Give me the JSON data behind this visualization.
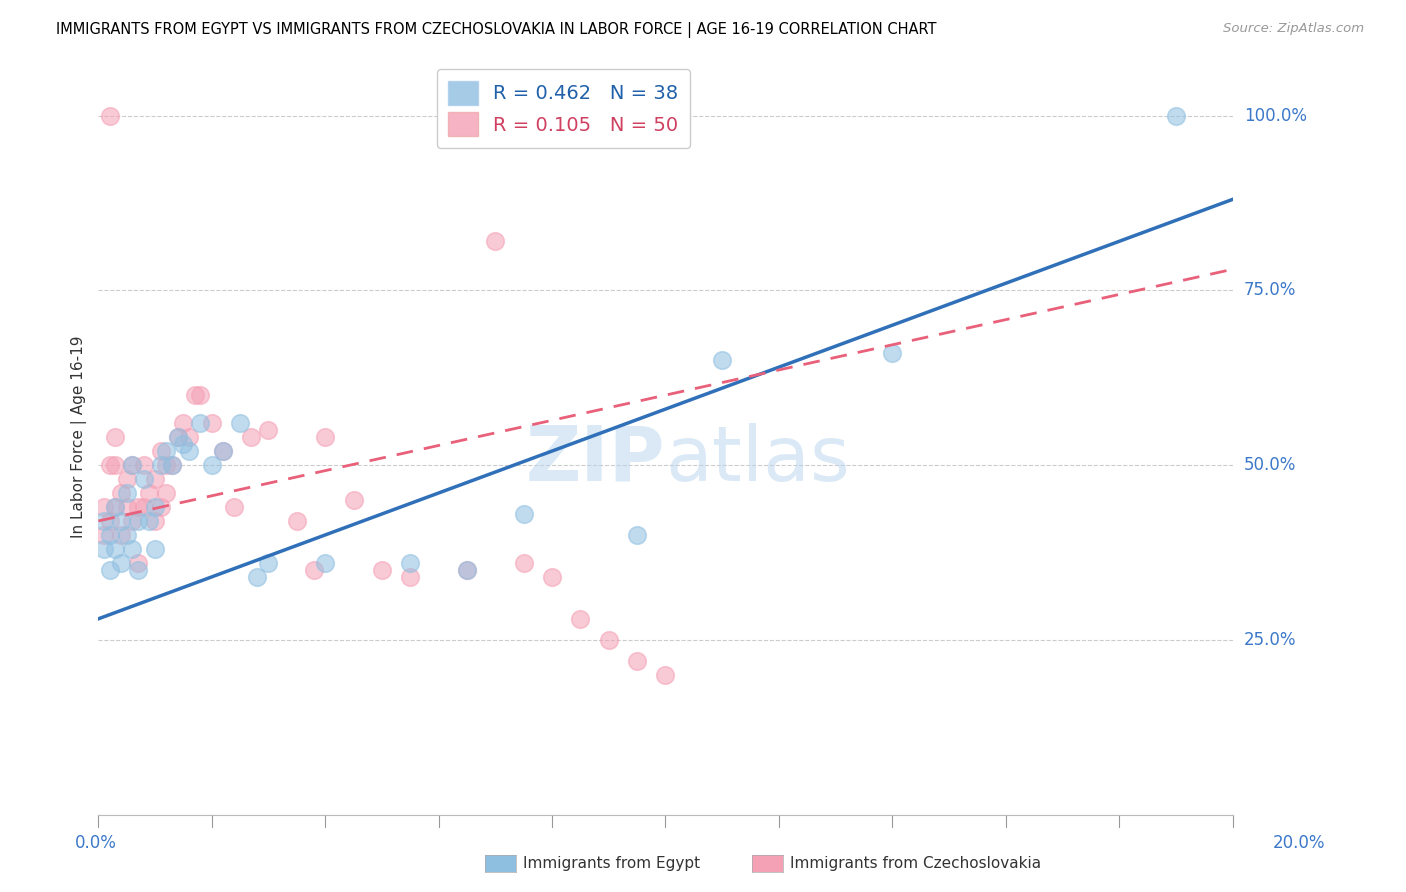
{
  "title": "IMMIGRANTS FROM EGYPT VS IMMIGRANTS FROM CZECHOSLOVAKIA IN LABOR FORCE | AGE 16-19 CORRELATION CHART",
  "source": "Source: ZipAtlas.com",
  "ylabel": "In Labor Force | Age 16-19",
  "legend_egypt_r": "R = 0.462",
  "legend_egypt_n": "N = 38",
  "legend_czech_r": "R = 0.105",
  "legend_czech_n": "N = 50",
  "egypt_color": "#8fbfe0",
  "czech_color": "#f4a0b5",
  "egypt_line_color": "#3070b8",
  "czech_line_color": "#e8607a",
  "watermark": "ZIPatlas",
  "xlim": [
    0.0,
    0.2
  ],
  "ylim": [
    0.0,
    1.08
  ],
  "egypt_line_y0": 0.28,
  "egypt_line_y1": 0.88,
  "czech_line_y0": 0.42,
  "czech_line_y1": 0.78,
  "egypt_scatter_x": [
    0.001,
    0.001,
    0.002,
    0.002,
    0.003,
    0.003,
    0.004,
    0.004,
    0.005,
    0.005,
    0.006,
    0.006,
    0.007,
    0.007,
    0.008,
    0.009,
    0.01,
    0.01,
    0.011,
    0.012,
    0.013,
    0.014,
    0.015,
    0.016,
    0.018,
    0.02,
    0.022,
    0.025,
    0.028,
    0.03,
    0.04,
    0.055,
    0.065,
    0.075,
    0.095,
    0.11,
    0.14,
    0.19
  ],
  "egypt_scatter_y": [
    0.38,
    0.42,
    0.35,
    0.4,
    0.38,
    0.44,
    0.42,
    0.36,
    0.4,
    0.46,
    0.38,
    0.5,
    0.42,
    0.35,
    0.48,
    0.42,
    0.38,
    0.44,
    0.5,
    0.52,
    0.5,
    0.54,
    0.53,
    0.52,
    0.56,
    0.5,
    0.52,
    0.56,
    0.34,
    0.36,
    0.36,
    0.36,
    0.35,
    0.43,
    0.4,
    0.65,
    0.66,
    1.0
  ],
  "czech_scatter_x": [
    0.001,
    0.001,
    0.002,
    0.002,
    0.003,
    0.003,
    0.003,
    0.004,
    0.004,
    0.005,
    0.005,
    0.006,
    0.006,
    0.007,
    0.007,
    0.008,
    0.008,
    0.009,
    0.01,
    0.01,
    0.011,
    0.011,
    0.012,
    0.012,
    0.013,
    0.014,
    0.015,
    0.016,
    0.017,
    0.018,
    0.02,
    0.022,
    0.024,
    0.027,
    0.03,
    0.035,
    0.038,
    0.04,
    0.045,
    0.05,
    0.055,
    0.065,
    0.07,
    0.075,
    0.08,
    0.085,
    0.09,
    0.095,
    0.1,
    0.002
  ],
  "czech_scatter_y": [
    0.4,
    0.44,
    0.42,
    0.5,
    0.44,
    0.5,
    0.54,
    0.4,
    0.46,
    0.44,
    0.48,
    0.42,
    0.5,
    0.44,
    0.36,
    0.44,
    0.5,
    0.46,
    0.42,
    0.48,
    0.44,
    0.52,
    0.46,
    0.5,
    0.5,
    0.54,
    0.56,
    0.54,
    0.6,
    0.6,
    0.56,
    0.52,
    0.44,
    0.54,
    0.55,
    0.42,
    0.35,
    0.54,
    0.45,
    0.35,
    0.34,
    0.35,
    0.82,
    0.36,
    0.34,
    0.28,
    0.25,
    0.22,
    0.2,
    1.0
  ]
}
